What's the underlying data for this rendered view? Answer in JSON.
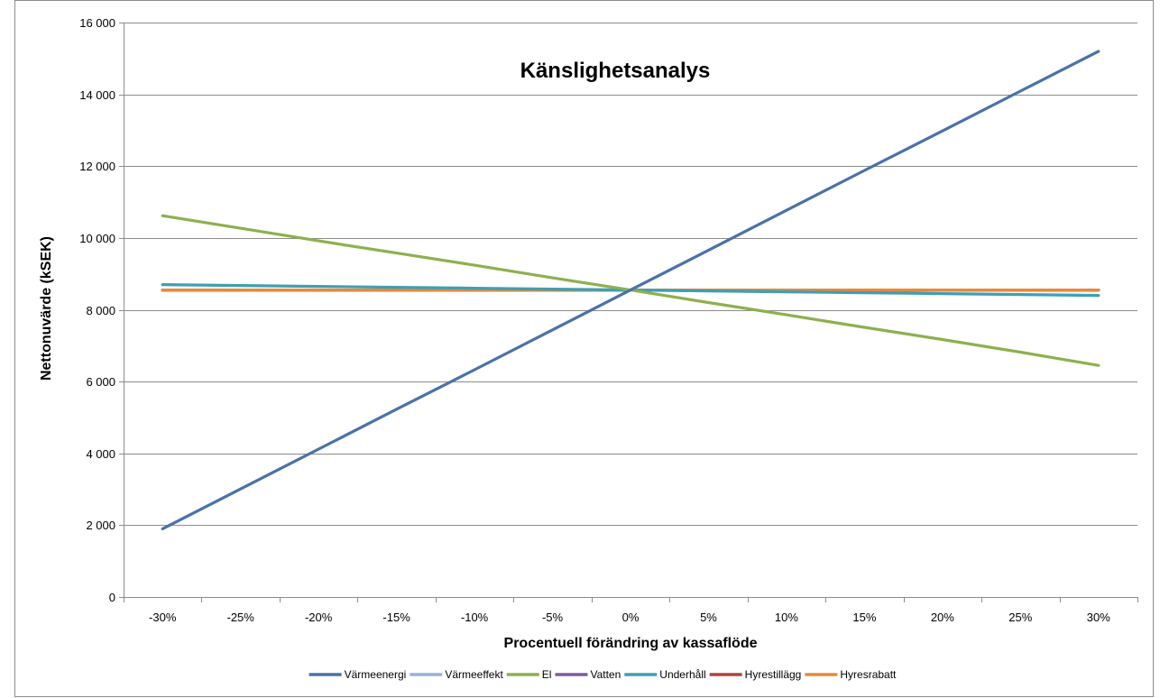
{
  "chart_data": {
    "type": "line",
    "title": "Känslighetsanalys",
    "xlabel": "Procentuell förändring av kassaflöde",
    "ylabel": "Nettonuvärde (kSEK)",
    "categories": [
      "-30%",
      "-25%",
      "-20%",
      "-15%",
      "-10%",
      "-5%",
      "0%",
      "5%",
      "10%",
      "15%",
      "20%",
      "25%",
      "30%"
    ],
    "y_ticks": [
      0,
      2000,
      4000,
      6000,
      8000,
      10000,
      12000,
      14000,
      16000
    ],
    "y_tick_labels": [
      "0",
      "2 000",
      "4 000",
      "6 000",
      "8 000",
      "10 000",
      "12 000",
      "14 000",
      "16 000"
    ],
    "ylim": [
      0,
      16000
    ],
    "grid": true,
    "legend_position": "bottom",
    "series": [
      {
        "name": "Värmeenergi",
        "color": "#4a72a8",
        "width": 3.2,
        "values": [
          1900,
          3010,
          4120,
          5230,
          6330,
          7440,
          8550,
          9660,
          10770,
          11880,
          12980,
          14090,
          15200
        ]
      },
      {
        "name": "Värmeeffekt",
        "color": "#95b3d7",
        "width": 3.2,
        "values": [
          8550,
          8550,
          8550,
          8550,
          8550,
          8550,
          8550,
          8550,
          8550,
          8550,
          8550,
          8550,
          8550
        ]
      },
      {
        "name": "El",
        "color": "#8db04e",
        "width": 3.2,
        "values": [
          10620,
          10270,
          9920,
          9580,
          9240,
          8890,
          8550,
          8200,
          7860,
          7510,
          7170,
          6820,
          6450
        ]
      },
      {
        "name": "Vatten",
        "color": "#7a5d9e",
        "width": 3.2,
        "values": [
          8550,
          8550,
          8550,
          8550,
          8550,
          8550,
          8550,
          8550,
          8550,
          8550,
          8550,
          8550,
          8550
        ]
      },
      {
        "name": "Underhåll",
        "color": "#3e9fb5",
        "width": 3.2,
        "values": [
          8700,
          8675,
          8650,
          8625,
          8600,
          8575,
          8550,
          8525,
          8500,
          8475,
          8450,
          8425,
          8400
        ]
      },
      {
        "name": "Hyrestillägg",
        "color": "#b0443d",
        "width": 3.2,
        "values": [
          8550,
          8550,
          8550,
          8550,
          8550,
          8550,
          8550,
          8550,
          8550,
          8550,
          8550,
          8550,
          8550
        ]
      },
      {
        "name": "Hyresrabatt",
        "color": "#e8893a",
        "width": 3.2,
        "values": [
          8550,
          8550,
          8550,
          8550,
          8550,
          8550,
          8550,
          8550,
          8550,
          8550,
          8550,
          8550,
          8550
        ]
      }
    ]
  }
}
